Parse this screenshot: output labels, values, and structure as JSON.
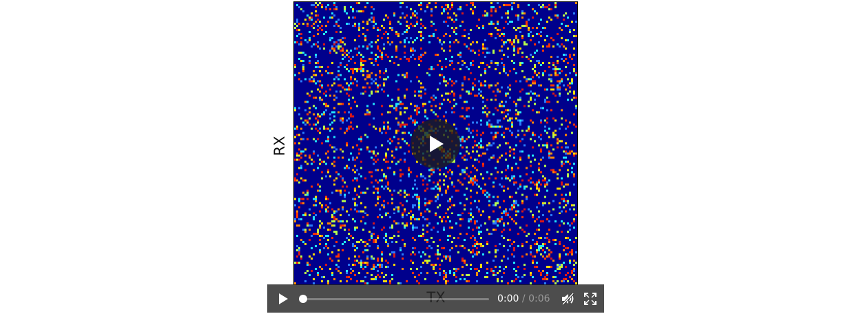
{
  "figure": {
    "ylabel": "RX",
    "xlabel": "TX",
    "colors": {
      "background_cell": "#00008c",
      "palette": [
        "#ff3300",
        "#ff8800",
        "#ffdd00",
        "#b8ff4a",
        "#22e4ff",
        "#2a7cff",
        "#d81818"
      ]
    }
  },
  "player": {
    "state": "paused",
    "progress_fraction": 0.0,
    "current_time": "0:00",
    "separator": "/",
    "duration": "0:06",
    "muted": true,
    "icons": {
      "big_play": "play-icon",
      "play": "play-icon",
      "mute": "volume-muted-icon",
      "fullscreen": "fullscreen-icon"
    }
  }
}
